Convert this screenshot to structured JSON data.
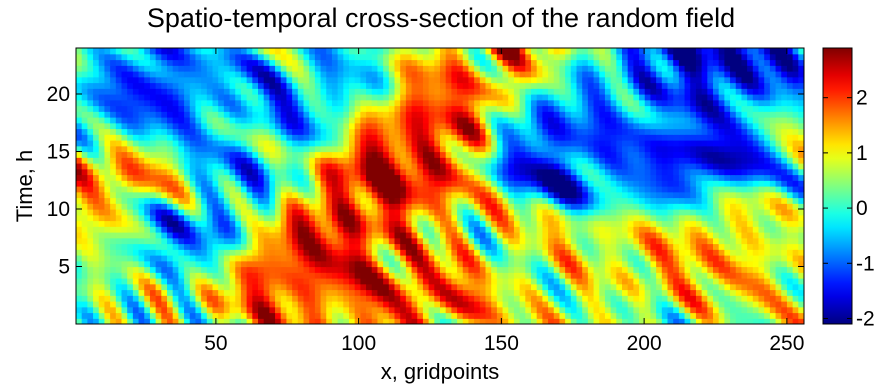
{
  "chart_data": {
    "type": "heatmap",
    "title": "Spatio-temporal cross-section of the random field",
    "xlabel": "x, gridpoints",
    "ylabel": "Time, h",
    "xlim": [
      1,
      256
    ],
    "ylim": [
      0,
      24
    ],
    "x_ticks": [
      50,
      100,
      150,
      200,
      250
    ],
    "y_ticks": [
      5,
      10,
      15,
      20
    ],
    "colorbar": {
      "range": [
        -2.1,
        2.9
      ],
      "ticks": [
        -2,
        -1,
        0,
        1,
        2
      ],
      "colormap": "jet"
    },
    "grid": false,
    "colormap_stops": [
      "#00008f",
      "#0000ff",
      "#00ffff",
      "#ffff00",
      "#ff0000",
      "#800000"
    ],
    "features": [
      {
        "x": 20,
        "y": 12,
        "value": 1.8
      },
      {
        "x": 28,
        "y": 20,
        "value": -1.6
      },
      {
        "x": 40,
        "y": 9,
        "value": -1.2
      },
      {
        "x": 57,
        "y": 15,
        "value": -0.5
      },
      {
        "x": 72,
        "y": 19,
        "value": -0.8
      },
      {
        "x": 80,
        "y": 5,
        "value": 2.6
      },
      {
        "x": 92,
        "y": 23,
        "value": -0.6
      },
      {
        "x": 108,
        "y": 11,
        "value": 2.9
      },
      {
        "x": 122,
        "y": 16,
        "value": 2.6
      },
      {
        "x": 118,
        "y": 3,
        "value": 2.3
      },
      {
        "x": 133,
        "y": 8,
        "value": 0.9
      },
      {
        "x": 140,
        "y": 23,
        "value": 1.9
      },
      {
        "x": 170,
        "y": 15,
        "value": -1.9
      },
      {
        "x": 182,
        "y": 5,
        "value": 0.9
      },
      {
        "x": 190,
        "y": 19,
        "value": -0.6
      },
      {
        "x": 215,
        "y": 22,
        "value": -2.0
      },
      {
        "x": 220,
        "y": 14,
        "value": -2.0
      },
      {
        "x": 226,
        "y": 7,
        "value": 1.7
      },
      {
        "x": 250,
        "y": 10,
        "value": 0.3
      },
      {
        "x": 236,
        "y": 24,
        "value": -1.7
      }
    ]
  }
}
